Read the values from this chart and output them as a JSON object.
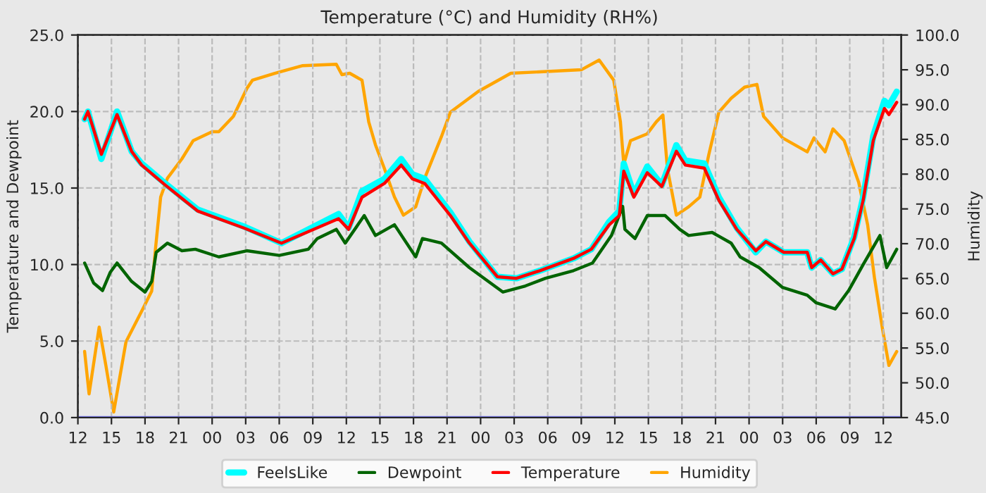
{
  "chart_data": {
    "type": "line",
    "title": "Temperature (°C) and Humidity (RH%)",
    "ylabel": "Temperature and Dewpoint",
    "y2label": "Humidity",
    "series": [
      {
        "name": "FeelsLike",
        "color": "#00ffff",
        "x": [
          12.6,
          12.9,
          14.1,
          15.5,
          16.8,
          17.7,
          19.8,
          22.7,
          26.8,
          30.2,
          35.3,
          36.2,
          37.4,
          39.4,
          40.9,
          41.9,
          43,
          45.3,
          47,
          49.5,
          51.2,
          53.3,
          56.3,
          57.9,
          59.5,
          60.4,
          60.8,
          61.7,
          62.9,
          64.2,
          65.5,
          66.3,
          68,
          69.3,
          70.9,
          72.6,
          73.5,
          75.1,
          77.2,
          77.6,
          78.4,
          79.5,
          80.3,
          81.4,
          82.2,
          83.1,
          84.1,
          84.5,
          85.2
        ],
        "values": [
          19.5,
          20.0,
          16.9,
          20.0,
          17.4,
          16.6,
          15.3,
          13.6,
          12.5,
          11.4,
          13.3,
          12.4,
          14.8,
          15.6,
          16.9,
          15.9,
          15.6,
          13.4,
          11.5,
          9.2,
          9.1,
          9.6,
          10.4,
          11.0,
          12.8,
          13.5,
          16.6,
          14.6,
          16.4,
          15.2,
          17.8,
          16.8,
          16.6,
          14.4,
          12.4,
          10.8,
          11.5,
          10.8,
          10.8,
          9.8,
          10.3,
          9.4,
          9.7,
          11.8,
          14.4,
          18.4,
          20.7,
          20.4,
          21.3
        ]
      },
      {
        "name": "Dewpoint",
        "color": "#006400",
        "x": [
          12.6,
          13.4,
          14.2,
          14.9,
          15.5,
          16.8,
          18.0,
          18.6,
          19.0,
          20.0,
          21.3,
          22.5,
          24.6,
          27.1,
          30.0,
          32.6,
          33.4,
          35.1,
          35.9,
          37.6,
          38.6,
          40.3,
          42.2,
          42.8,
          44.5,
          47,
          50,
          52,
          53.8,
          56.3,
          58,
          59.7,
          60.7,
          60.9,
          61.8,
          62.9,
          64.5,
          65.8,
          66.6,
          68.7,
          70.4,
          71.2,
          72.9,
          75,
          77.2,
          78,
          79.7,
          80.9,
          82.2,
          83.7,
          84.3,
          85.2
        ],
        "values": [
          10.1,
          8.8,
          8.3,
          9.5,
          10.1,
          8.9,
          8.2,
          8.9,
          10.8,
          11.4,
          10.9,
          11.0,
          10.5,
          10.9,
          10.6,
          11.0,
          11.7,
          12.3,
          11.4,
          13.2,
          11.9,
          12.6,
          10.5,
          11.7,
          11.4,
          9.8,
          8.2,
          8.6,
          9.1,
          9.6,
          10.1,
          11.9,
          13.8,
          12.3,
          11.7,
          13.2,
          13.2,
          12.3,
          11.9,
          12.1,
          11.4,
          10.5,
          9.8,
          8.5,
          8.0,
          7.5,
          7.1,
          8.3,
          10.0,
          11.9,
          9.8,
          11.0
        ]
      },
      {
        "name": "Temperature",
        "color": "#ff0000",
        "x": [
          12.6,
          12.9,
          14.1,
          15.5,
          16.8,
          17.7,
          19.8,
          22.7,
          26.8,
          30.2,
          35.3,
          36.2,
          37.4,
          39.4,
          40.9,
          41.9,
          43,
          45.3,
          47,
          49.5,
          51.2,
          53.3,
          56.3,
          57.9,
          59.5,
          60.4,
          60.8,
          61.7,
          62.9,
          64.2,
          65.5,
          66.3,
          68,
          69.3,
          70.9,
          72.6,
          73.5,
          75.1,
          77.2,
          77.6,
          78.4,
          79.5,
          80.3,
          81.4,
          82.2,
          83.1,
          84.1,
          84.5,
          85.2
        ],
        "values": [
          19.5,
          20.0,
          17.2,
          19.8,
          17.4,
          16.5,
          15.2,
          13.5,
          12.4,
          11.4,
          13.0,
          12.3,
          14.4,
          15.3,
          16.5,
          15.6,
          15.3,
          13.2,
          11.4,
          9.2,
          9.1,
          9.6,
          10.4,
          11.0,
          12.6,
          13.2,
          16.1,
          14.4,
          16.0,
          15.1,
          17.4,
          16.5,
          16.3,
          14.2,
          12.3,
          10.9,
          11.5,
          10.8,
          10.8,
          9.8,
          10.3,
          9.4,
          9.7,
          11.7,
          14.2,
          18.1,
          20.2,
          19.8,
          20.6
        ]
      },
      {
        "name": "Humidity",
        "color": "#ffa500",
        "axis": "y2",
        "x": [
          12.6,
          13.0,
          13.9,
          14.5,
          15.2,
          16.3,
          17.8,
          18.6,
          18.9,
          19.4,
          20.0,
          21.3,
          22.3,
          24.0,
          24.6,
          25.9,
          27.1,
          27.6,
          29.6,
          32.1,
          35.1,
          35.6,
          36.3,
          37.4,
          38,
          38.6,
          39.4,
          40.3,
          41.1,
          42.2,
          43,
          44.5,
          45.3,
          47.8,
          50.7,
          57,
          58.6,
          59.9,
          60.5,
          60.8,
          61.4,
          62.9,
          63.7,
          64.3,
          64.7,
          65.5,
          66.6,
          67.6,
          68.4,
          69.3,
          70.4,
          71.6,
          72.7,
          73.3,
          75,
          77.2,
          77.8,
          78.8,
          79.5,
          80.5,
          81.8,
          82.6,
          83.2,
          83.9,
          84.5,
          85.2
        ],
        "values": [
          54.5,
          48.4,
          58,
          52.5,
          45.8,
          55.9,
          60.6,
          63.2,
          68.7,
          76.7,
          79.4,
          82.2,
          84.8,
          86.1,
          86.1,
          88.3,
          92.3,
          93.5,
          94.5,
          95.6,
          95.8,
          94.3,
          94.5,
          93.5,
          87.5,
          84.2,
          80.8,
          76.7,
          74.1,
          75.3,
          79.4,
          85.4,
          88.9,
          91.9,
          94.5,
          95,
          96.4,
          93.5,
          87.5,
          81.4,
          84.8,
          85.8,
          87.5,
          88.5,
          80.8,
          74.1,
          75.3,
          76.7,
          82.8,
          88.9,
          90.9,
          92.5,
          92.9,
          88.3,
          85.2,
          83.2,
          85.2,
          83.2,
          86.5,
          84.8,
          78.8,
          72.7,
          65.2,
          58,
          52.5,
          54.5
        ]
      },
      {
        "color": "#7f7fff",
        "x": [
          12,
          85.6
        ],
        "values": [
          0,
          0
        ]
      }
    ],
    "xlim": [
      12,
      85.6
    ],
    "xticks": [
      {
        "value": 12,
        "label": "12"
      },
      {
        "value": 15,
        "label": "15"
      },
      {
        "value": 18,
        "label": "18"
      },
      {
        "value": 21,
        "label": "21"
      },
      {
        "value": 24,
        "label": "00"
      },
      {
        "value": 27,
        "label": "03"
      },
      {
        "value": 30,
        "label": "06"
      },
      {
        "value": 33,
        "label": "09"
      },
      {
        "value": 36,
        "label": "12"
      },
      {
        "value": 39,
        "label": "15"
      },
      {
        "value": 42,
        "label": "18"
      },
      {
        "value": 45,
        "label": "21"
      },
      {
        "value": 48,
        "label": "00"
      },
      {
        "value": 51,
        "label": "03"
      },
      {
        "value": 54,
        "label": "06"
      },
      {
        "value": 57,
        "label": "09"
      },
      {
        "value": 60,
        "label": "12"
      },
      {
        "value": 63,
        "label": "15"
      },
      {
        "value": 66,
        "label": "18"
      },
      {
        "value": 69,
        "label": "21"
      },
      {
        "value": 72,
        "label": "00"
      },
      {
        "value": 75,
        "label": "03"
      },
      {
        "value": 78,
        "label": "06"
      },
      {
        "value": 81,
        "label": "09"
      },
      {
        "value": 84,
        "label": "12"
      }
    ],
    "ylim": [
      0,
      25
    ],
    "yticks": [
      {
        "value": 0,
        "label": "0.0"
      },
      {
        "value": 5,
        "label": "5.0"
      },
      {
        "value": 10,
        "label": "10.0"
      },
      {
        "value": 15,
        "label": "15.0"
      },
      {
        "value": 20,
        "label": "20.0"
      },
      {
        "value": 25,
        "label": "25.0"
      }
    ],
    "y2lim": [
      45,
      100
    ],
    "y2ticks": [
      {
        "value": 45,
        "label": "45.0"
      },
      {
        "value": 50,
        "label": "50.0"
      },
      {
        "value": 55,
        "label": "55.0"
      },
      {
        "value": 60,
        "label": "60.0"
      },
      {
        "value": 65,
        "label": "65.0"
      },
      {
        "value": 70,
        "label": "70.0"
      },
      {
        "value": 75,
        "label": "75.0"
      },
      {
        "value": 80,
        "label": "80.0"
      },
      {
        "value": 85,
        "label": "85.0"
      },
      {
        "value": 90,
        "label": "90.0"
      },
      {
        "value": 95,
        "label": "95.0"
      },
      {
        "value": 100,
        "label": "100.0"
      }
    ],
    "grid": true,
    "legend": "bottom",
    "line_style": "solid",
    "marker": "none"
  }
}
